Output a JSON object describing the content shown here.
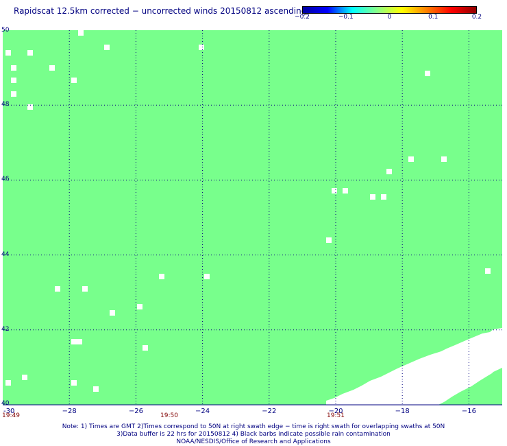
{
  "title": "Rapidscat 12.5km corrected − uncorrected winds 20150812 ascending",
  "colorbar": {
    "stops": [
      "#0000a0",
      "#0000ff",
      "#00ffff",
      "#88ff88",
      "#ffff00",
      "#ff8000",
      "#ff0000",
      "#900000"
    ],
    "labels": [
      {
        "value": -0.2,
        "text": "−0.2"
      },
      {
        "value": -0.1,
        "text": "−0.1"
      },
      {
        "value": 0,
        "text": "0"
      },
      {
        "value": 0.1,
        "text": "0.1"
      },
      {
        "value": 0.2,
        "text": "0.2"
      }
    ]
  },
  "map": {
    "fill_color": "#78ff8c",
    "grid_color": "#000080",
    "lon_range": [
      -30,
      -15
    ],
    "lat_range": [
      40,
      50
    ],
    "lat_ticks": [
      {
        "value": 50,
        "text": "50"
      },
      {
        "value": 48,
        "text": "48"
      },
      {
        "value": 46,
        "text": "46"
      },
      {
        "value": 44,
        "text": "44"
      },
      {
        "value": 42,
        "text": "42"
      },
      {
        "value": 40,
        "text": "40"
      }
    ],
    "lon_ticks": [
      {
        "value": -30,
        "text": "-30"
      },
      {
        "value": -28,
        "text": "−28"
      },
      {
        "value": -26,
        "text": "−26"
      },
      {
        "value": -24,
        "text": "−24"
      },
      {
        "value": -22,
        "text": "−22"
      },
      {
        "value": -20,
        "text": "−20"
      },
      {
        "value": -18,
        "text": "−18"
      },
      {
        "value": -16,
        "text": "−16"
      }
    ],
    "time_labels": [
      {
        "lon": -30,
        "text": "19:49"
      },
      {
        "lon": -25,
        "text": "19:50"
      },
      {
        "lon": -20,
        "text": "19:51"
      }
    ]
  },
  "notes": [
    "Note: 1) Times are GMT 2)Times correspond to 50N at right swath edge − time is right swath for overlapping swaths at 50N",
    "3)Data buffer is 22 hrs for 20150812 4) Black barbs indicate possible rain contamination",
    "NOAA/NESDIS/Office of Research and Applications"
  ]
}
